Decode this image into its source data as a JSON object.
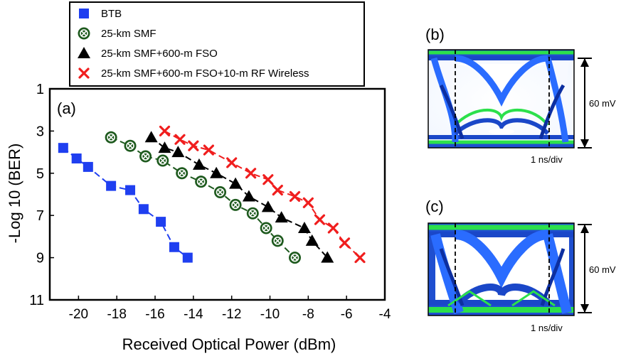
{
  "chart_data": {
    "type": "scatter",
    "panel_label": "(a)",
    "xlabel": "Received  Optical  Power  (dBm)",
    "ylabel": "-Log 10 (BER)",
    "xlim": [
      -21.5,
      -4
    ],
    "ylim": [
      1,
      11
    ],
    "y_inverted": true,
    "x_ticks": [
      -20,
      -18,
      -16,
      -14,
      -12,
      -10,
      -8,
      -6,
      -4
    ],
    "y_ticks": [
      1,
      3,
      5,
      7,
      9,
      11
    ],
    "legend_position": "top, above plot",
    "grid": false,
    "series": [
      {
        "name": "BTB",
        "marker": "square",
        "color": "#1f3ff0",
        "x": [
          -20.8,
          -20.1,
          -19.5,
          -18.3,
          -17.3,
          -16.6,
          -15.7,
          -15.0,
          -14.3
        ],
        "y": [
          3.8,
          4.3,
          4.7,
          5.6,
          5.8,
          6.7,
          7.3,
          8.5,
          9.0
        ]
      },
      {
        "name": "25-km SMF",
        "marker": "circle-x",
        "color": "#1e5a1e",
        "x": [
          -18.3,
          -17.3,
          -16.5,
          -15.6,
          -14.6,
          -13.6,
          -12.6,
          -11.8,
          -10.9,
          -10.2,
          -9.6,
          -8.7
        ],
        "y": [
          3.3,
          3.7,
          4.2,
          4.4,
          5.0,
          5.4,
          5.9,
          6.5,
          6.9,
          7.6,
          8.2,
          9.0
        ]
      },
      {
        "name": "25-km SMF+600-m FSO",
        "marker": "triangle",
        "color": "#000000",
        "x": [
          -16.2,
          -15.5,
          -14.8,
          -13.7,
          -12.8,
          -11.8,
          -11.1,
          -10.1,
          -9.4,
          -8.2,
          -7.8,
          -7.0
        ],
        "y": [
          3.3,
          3.8,
          4.0,
          4.6,
          5.0,
          5.5,
          6.1,
          6.6,
          7.1,
          7.6,
          8.2,
          9.0
        ]
      },
      {
        "name": "25-km SMF+600-m FSO+10-m RF Wireless",
        "marker": "x",
        "color": "#f01e1e",
        "x": [
          -15.5,
          -14.7,
          -14.0,
          -13.2,
          -12.0,
          -11.0,
          -10.1,
          -9.6,
          -8.7,
          -8.0,
          -7.4,
          -6.7,
          -6.1,
          -5.3
        ],
        "y": [
          3.0,
          3.4,
          3.7,
          3.9,
          4.5,
          5.0,
          5.3,
          5.8,
          6.1,
          6.4,
          7.2,
          7.6,
          8.3,
          9.0
        ]
      }
    ]
  },
  "eye_panels": [
    {
      "label": "(b)",
      "amplitude": "60 mV",
      "timebase": "1 ns/div"
    },
    {
      "label": "(c)",
      "amplitude": "60 mV",
      "timebase": "1 ns/div"
    }
  ]
}
